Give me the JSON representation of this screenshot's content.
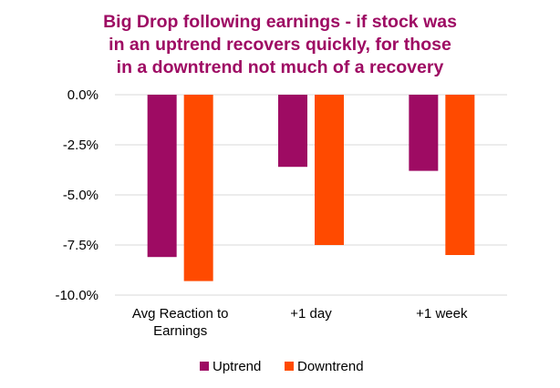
{
  "chart_data": {
    "type": "bar",
    "title_lines": [
      "Big Drop following earnings - if stock was",
      "in an uptrend recovers quickly, for those",
      "in a downtrend not much of a recovery"
    ],
    "categories": [
      [
        "Avg Reaction to",
        "Earnings"
      ],
      [
        "+1 day"
      ],
      [
        "+1 week"
      ]
    ],
    "series": [
      {
        "name": "Uptrend",
        "color": "#9e0b63",
        "values": [
          -8.1,
          -3.6,
          -3.8
        ]
      },
      {
        "name": "Downtrend",
        "color": "#ff4a00",
        "values": [
          -9.3,
          -7.5,
          -8.0
        ]
      }
    ],
    "ylim": [
      -10.0,
      0.0
    ],
    "yticks": [
      0.0,
      -2.5,
      -5.0,
      -7.5,
      -10.0
    ],
    "ytick_labels": [
      "0.0%",
      "-2.5%",
      "-5.0%",
      "-7.5%",
      "-10.0%"
    ],
    "grid": true,
    "legend_position": "bottom"
  }
}
